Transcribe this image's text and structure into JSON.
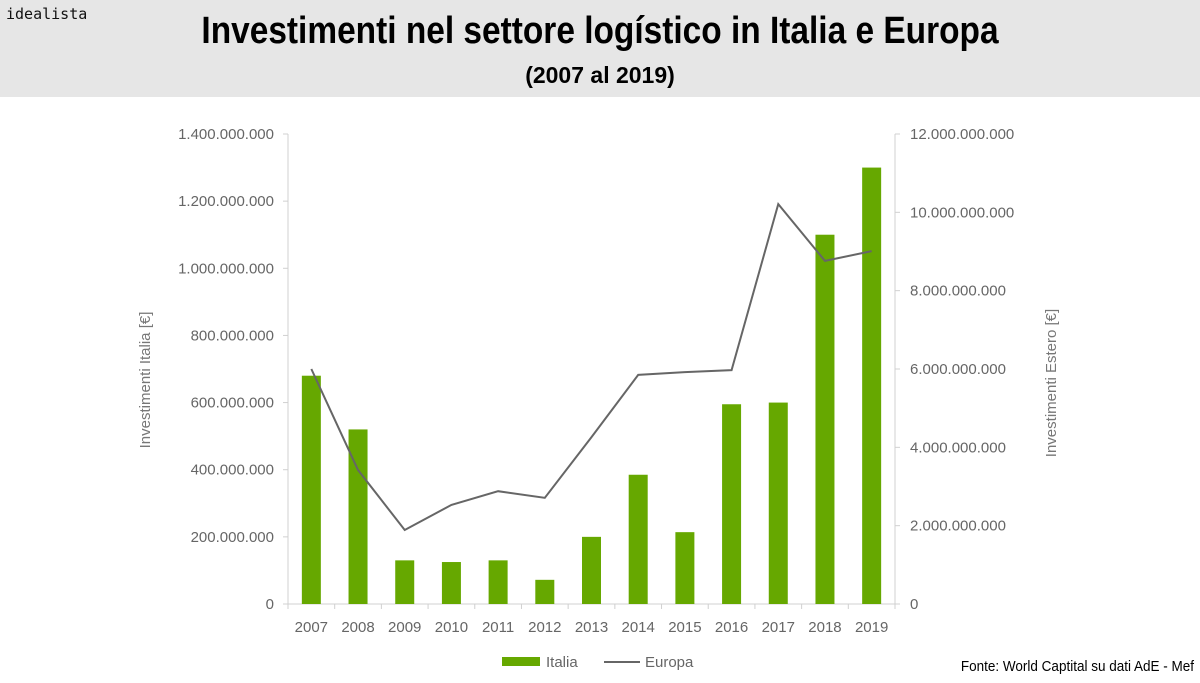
{
  "header": {
    "logo": "idealista",
    "title": "Investimenti nel settore logístico in Italia e Europa",
    "subtitle": "(2007 al 2019)"
  },
  "source": "Fonte: World Captital su dati AdE - Mef",
  "colors": {
    "italia": "#66a800",
    "europa": "#666666",
    "header_bg": "#e6e6e6"
  },
  "chart_data": {
    "type": "bar+line",
    "categories": [
      "2007",
      "2008",
      "2009",
      "2010",
      "2011",
      "2012",
      "2013",
      "2014",
      "2015",
      "2016",
      "2017",
      "2018",
      "2019"
    ],
    "series": [
      {
        "name": "Italia",
        "type": "bar",
        "axis": "left",
        "values": [
          680000000,
          520000000,
          130000000,
          125000000,
          130000000,
          72000000,
          200000000,
          385000000,
          214000000,
          595000000,
          600000000,
          1100000000,
          1300000000
        ]
      },
      {
        "name": "Europa",
        "type": "line",
        "axis": "right",
        "values": [
          6000000000,
          3420000000,
          1890000000,
          2530000000,
          2880000000,
          2710000000,
          4260000000,
          5850000000,
          5920000000,
          5970000000,
          10210000000,
          8760000000,
          9010000000
        ]
      }
    ],
    "ylabel": "Investimenti Italia [€]",
    "y2label": "Investimenti Estero [€]",
    "ylim": [
      0,
      1400000000
    ],
    "y2lim": [
      0,
      12000000000
    ],
    "yticks": [
      "0",
      "200.000.000",
      "400.000.000",
      "600.000.000",
      "800.000.000",
      "1.000.000.000",
      "1.200.000.000",
      "1.400.000.000"
    ],
    "y2ticks": [
      "0",
      "2.000.000.000",
      "4.000.000.000",
      "6.000.000.000",
      "8.000.000.000",
      "10.000.000.000",
      "12.000.000.000"
    ],
    "grid": false,
    "legend": "bottom"
  }
}
